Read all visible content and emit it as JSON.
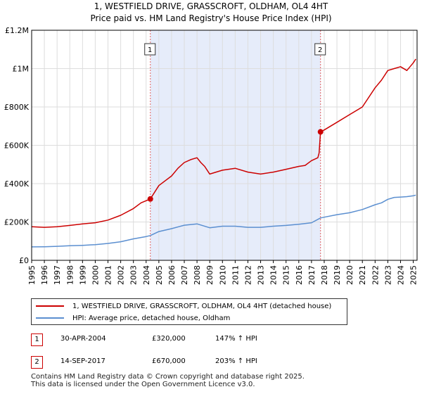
{
  "header": {
    "title": "1, WESTFIELD DRIVE, GRASSCROFT, OLDHAM, OL4 4HT",
    "subtitle": "Price paid vs. HM Land Registry's House Price Index (HPI)"
  },
  "colors": {
    "property": "#cc0000",
    "hpi": "#5b8fd0",
    "shade": "#e6ecfa",
    "grid": "#dddddd",
    "marker_line": "#e06060"
  },
  "chart_data": {
    "type": "line",
    "title": "1, WESTFIELD DRIVE, GRASSCROFT, OLDHAM, OL4 4HT",
    "xlim": [
      1995,
      2025.3
    ],
    "ylim": [
      0,
      1200000
    ],
    "y_ticks": [
      0,
      200000,
      400000,
      600000,
      800000,
      1000000,
      1200000
    ],
    "y_tick_labels": [
      "£0",
      "£200K",
      "£400K",
      "£600K",
      "£800K",
      "£1M",
      "£1.2M"
    ],
    "x_ticks": [
      "1995",
      "1996",
      "1997",
      "1998",
      "1999",
      "2000",
      "2001",
      "2002",
      "2003",
      "2004",
      "2005",
      "2006",
      "2007",
      "2008",
      "2009",
      "2010",
      "2011",
      "2012",
      "2013",
      "2014",
      "2015",
      "2016",
      "2017",
      "2018",
      "2019",
      "2020",
      "2021",
      "2022",
      "2023",
      "2024",
      "2025"
    ],
    "shaded_period": [
      2004.33,
      2017.71
    ],
    "series": [
      {
        "name": "1, WESTFIELD DRIVE, GRASSCROFT, OLDHAM, OL4 4HT (detached house)",
        "x": [
          1995,
          1996,
          1997,
          1998,
          1999,
          2000,
          2001,
          2002,
          2003,
          2003.6,
          2004.33,
          2005,
          2006,
          2006.5,
          2007,
          2007.5,
          2008,
          2008.3,
          2008.6,
          2009,
          2010,
          2011,
          2012,
          2013,
          2014,
          2015,
          2016,
          2016.5,
          2017,
          2017.5,
          2017.6,
          2017.71,
          2018,
          2019,
          2020,
          2021,
          2022,
          2022.5,
          2023,
          2023.5,
          2024,
          2024.5,
          2025,
          2025.2
        ],
        "values": [
          175000,
          172000,
          175000,
          182000,
          190000,
          196000,
          210000,
          235000,
          270000,
          300000,
          320000,
          390000,
          440000,
          480000,
          510000,
          525000,
          535000,
          510000,
          490000,
          450000,
          470000,
          480000,
          460000,
          450000,
          460000,
          475000,
          490000,
          495000,
          520000,
          535000,
          560000,
          670000,
          680000,
          720000,
          760000,
          800000,
          900000,
          940000,
          990000,
          1000000,
          1010000,
          990000,
          1030000,
          1050000
        ]
      },
      {
        "name": "HPI: Average price, detached house, Oldham",
        "x": [
          1995,
          1996,
          1997,
          1998,
          1999,
          2000,
          2001,
          2002,
          2003,
          2004,
          2004.33,
          2005,
          2006,
          2007,
          2008,
          2009,
          2010,
          2011,
          2012,
          2013,
          2014,
          2015,
          2016,
          2017,
          2017.71,
          2018,
          2019,
          2020,
          2021,
          2022,
          2022.5,
          2023,
          2023.5,
          2024,
          2024.5,
          2025,
          2025.2
        ],
        "values": [
          70000,
          71000,
          73000,
          76000,
          78000,
          82000,
          88000,
          97000,
          112000,
          124000,
          129000,
          150000,
          165000,
          183000,
          190000,
          170000,
          178000,
          178000,
          172000,
          172000,
          178000,
          182000,
          188000,
          196000,
          221000,
          225000,
          238000,
          248000,
          265000,
          290000,
          300000,
          318000,
          328000,
          330000,
          332000,
          337000,
          340000
        ]
      }
    ],
    "annotations": [
      {
        "label": "1",
        "x": 2004.33,
        "y": 320000
      },
      {
        "label": "2",
        "x": 2017.71,
        "y": 670000
      }
    ]
  },
  "legend": {
    "property_label": "1, WESTFIELD DRIVE, GRASSCROFT, OLDHAM, OL4 4HT (detached house)",
    "hpi_label": "HPI: Average price, detached house, Oldham"
  },
  "transactions": [
    {
      "id": "1",
      "date": "30-APR-2004",
      "price": "£320,000",
      "hpi_change": "147% ↑ HPI"
    },
    {
      "id": "2",
      "date": "14-SEP-2017",
      "price": "£670,000",
      "hpi_change": "203% ↑ HPI"
    }
  ],
  "footer": {
    "line1": "Contains HM Land Registry data © Crown copyright and database right 2025.",
    "line2": "This data is licensed under the Open Government Licence v3.0."
  }
}
